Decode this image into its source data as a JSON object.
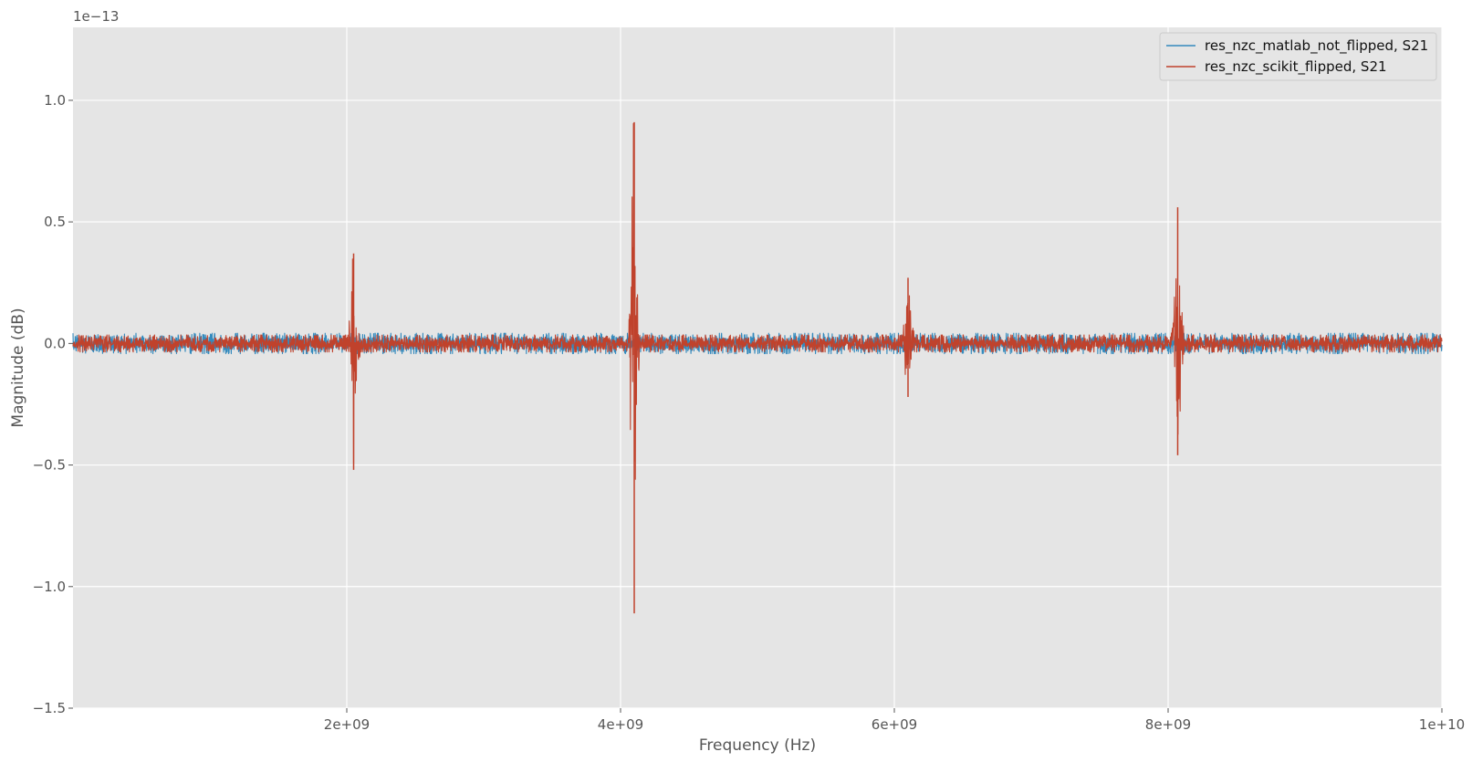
{
  "chart_data": {
    "type": "line",
    "title": "",
    "xlabel": "Frequency (Hz)",
    "ylabel": "Magnitude (dB)",
    "y_offset_label": "1e−13",
    "y_scale_exponent": -13,
    "xlim": [
      0,
      10000000000
    ],
    "ylim": [
      -1.5e-13,
      1.3e-13
    ],
    "grid": true,
    "legend_position": "top-right",
    "x_ticks": [
      {
        "value": 2000000000,
        "label": "2e+09"
      },
      {
        "value": 4000000000,
        "label": "4e+09"
      },
      {
        "value": 6000000000,
        "label": "6e+09"
      },
      {
        "value": 8000000000,
        "label": "8e+09"
      },
      {
        "value": 10000000000,
        "label": "1e+10"
      }
    ],
    "y_ticks": [
      {
        "value": 1e-13,
        "label": "1.0"
      },
      {
        "value": 5e-14,
        "label": "0.5"
      },
      {
        "value": 0.0,
        "label": "0.0"
      },
      {
        "value": -5e-14,
        "label": "−0.5"
      },
      {
        "value": -1e-13,
        "label": "−1.0"
      },
      {
        "value": -1.5e-13,
        "label": "−1.5"
      }
    ],
    "series": [
      {
        "name": "res_nzc_matlab_not_flipped, S21",
        "color": "#348abd",
        "noise_amplitude": 1.2e-15,
        "features": []
      },
      {
        "name": "res_nzc_scikit_flipped, S21",
        "color": "#c0422c",
        "noise_amplitude": 1e-15,
        "features": [
          {
            "x": 2050000000,
            "max": 3.7e-14,
            "min": -5.2e-14
          },
          {
            "x": 4100000000,
            "max": 9.1e-14,
            "min": -1.11e-13
          },
          {
            "x": 6100000000,
            "max": 2.7e-14,
            "min": -2.2e-14
          },
          {
            "x": 8070000000,
            "max": 5.6e-14,
            "min": -4.6e-14
          }
        ]
      }
    ]
  }
}
